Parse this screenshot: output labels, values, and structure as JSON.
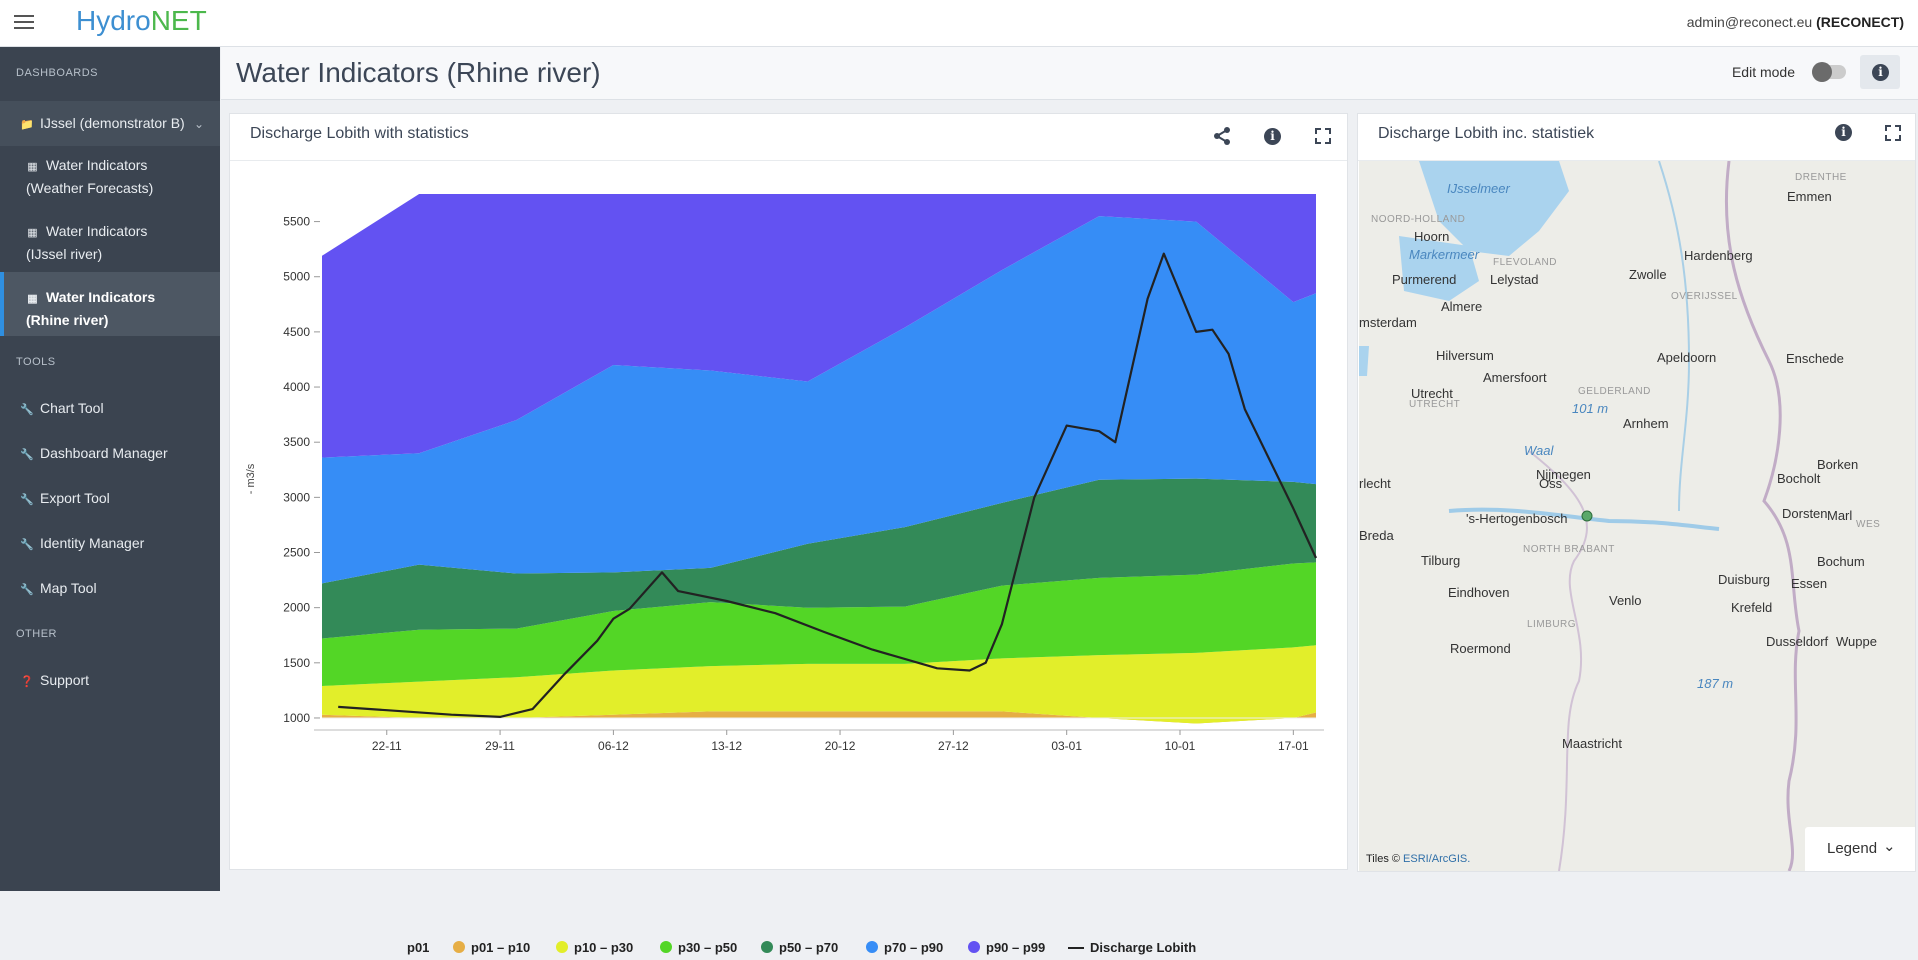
{
  "app": {
    "logo_hydro": "Hydro",
    "logo_net": "NET",
    "user_email": "admin@reconect.eu",
    "user_org": "(RECONECT)"
  },
  "sidebar": {
    "sections": {
      "dashboards": "DASHBOARDS",
      "tools": "TOOLS",
      "other": "OTHER"
    },
    "group": {
      "label": "IJssel (demonstrator B)",
      "icon": "folder-icon"
    },
    "dashboards": [
      {
        "label": "Water Indicators (Weather Forecasts)",
        "icon": "dashboard-icon"
      },
      {
        "label": "Water Indicators (IJssel river)",
        "icon": "dashboard-icon"
      },
      {
        "label": "Water Indicators (Rhine river)",
        "icon": "dashboard-icon",
        "active": true
      }
    ],
    "tools": [
      {
        "label": "Chart Tool",
        "icon": "wrench-icon"
      },
      {
        "label": "Dashboard Manager",
        "icon": "wrench-icon"
      },
      {
        "label": "Export Tool",
        "icon": "wrench-icon"
      },
      {
        "label": "Identity Manager",
        "icon": "wrench-icon"
      },
      {
        "label": "Map Tool",
        "icon": "wrench-icon"
      }
    ],
    "other": [
      {
        "label": "Support",
        "icon": "question-circle-icon"
      }
    ]
  },
  "header": {
    "title": "Water Indicators (Rhine river)",
    "edit_mode_label": "Edit mode",
    "edit_mode_on": false
  },
  "chart_panel": {
    "title": "Discharge Lobith with statistics"
  },
  "map_panel": {
    "title": "Discharge Lobith inc. statistiek",
    "legend_label": "Legend",
    "attribution_prefix": "Tiles ©",
    "attribution_link": "ESRI/ArcGIS.",
    "places": [
      "IJsselmeer",
      "NOORD-HOLLAND",
      "Hoorn",
      "Markermeer",
      "FLEVOLAND",
      "DRENTHE",
      "Emmen",
      "Hardenberg",
      "Purmerend",
      "Lelystad",
      "Zwolle",
      "OVERIJSSEL",
      "msterdam",
      "Almere",
      "Hilversum",
      "Apeldoorn",
      "Enschede",
      "Amersfoort",
      "GELDERLAND",
      "Utrecht",
      "UTRECHT",
      "101 m",
      "Arnhem",
      "Waal",
      "Nijmegen",
      "Borken",
      "Bocholt",
      "rlecht",
      "Oss",
      "'s-Hertogenbosch",
      "Dorsten",
      "Marl",
      "WES",
      "Breda",
      "NORTH BRABANT",
      "Tilburg",
      "Bochum",
      "Duisburg",
      "Essen",
      "Eindhoven",
      "Venlo",
      "Krefeld",
      "LIMBURG",
      "Roermond",
      "Dusseldorf",
      "Wuppe",
      "187 m",
      "Maastricht"
    ]
  },
  "chart_data": {
    "type": "area",
    "title": "",
    "xlabel": "",
    "ylabel": "- m3/s",
    "ylim": [
      900,
      5750
    ],
    "yticks": [
      1000,
      1500,
      2000,
      2500,
      3000,
      3500,
      4000,
      4500,
      5000,
      5500
    ],
    "xticks": [
      {
        "label": "22-11",
        "day": 6
      },
      {
        "label": "29-11",
        "day": 13
      },
      {
        "label": "06-12",
        "day": 20
      },
      {
        "label": "13-12",
        "day": 27
      },
      {
        "label": "20-12",
        "day": 34
      },
      {
        "label": "27-12",
        "day": 41
      },
      {
        "label": "03-01",
        "day": 48
      },
      {
        "label": "10-01",
        "day": 55
      },
      {
        "label": "17-01",
        "day": 62
      }
    ],
    "x_days": [
      2,
      8,
      14,
      20,
      26,
      32,
      38,
      44,
      50,
      56,
      62,
      63.4
    ],
    "band_bounds": {
      "p01": [
        1000,
        1000,
        1000,
        1000,
        1000,
        1000,
        1000,
        1000,
        1000,
        1000,
        1000,
        1000
      ],
      "p10": [
        1030,
        1000,
        1000,
        1030,
        1060,
        1060,
        1060,
        1060,
        1000,
        950,
        1000,
        1050
      ],
      "p30": [
        1290,
        1330,
        1370,
        1430,
        1470,
        1490,
        1490,
        1540,
        1570,
        1590,
        1640,
        1660
      ],
      "p50": [
        1720,
        1800,
        1810,
        1970,
        2050,
        2000,
        2010,
        2200,
        2270,
        2300,
        2400,
        2410
      ],
      "p70": [
        2220,
        2390,
        2310,
        2320,
        2360,
        2580,
        2730,
        2950,
        3160,
        3170,
        3140,
        3120
      ],
      "p90": [
        3360,
        3400,
        3700,
        4200,
        4150,
        4050,
        4540,
        5060,
        5550,
        5500,
        4770,
        4850
      ],
      "p99": [
        5190,
        5750,
        5750,
        5750,
        5750,
        5750,
        5750,
        5750,
        5750,
        5750,
        5750,
        5750
      ]
    },
    "colors": {
      "p01": "#000000",
      "p01_p10": "#e6ae45",
      "p10_p30": "#e2ee2a",
      "p30_p50": "#53d626",
      "p50_p70": "#338a58",
      "p70_p90": "#368df6",
      "p90_p99": "#6352f2",
      "discharge": "#222222"
    },
    "series": [
      {
        "name": "p01",
        "kind": "line"
      },
      {
        "name": "p01 – p10",
        "kind": "band"
      },
      {
        "name": "p10 – p30",
        "kind": "band"
      },
      {
        "name": "p30 – p50",
        "kind": "band"
      },
      {
        "name": "p50 – p70",
        "kind": "band"
      },
      {
        "name": "p70 – p90",
        "kind": "band"
      },
      {
        "name": "p90 – p99",
        "kind": "band"
      },
      {
        "name": "Discharge Lobith",
        "kind": "line",
        "x": [
          3,
          6,
          10,
          13,
          15,
          17,
          19,
          20,
          21,
          23,
          24,
          27,
          30,
          33,
          36,
          40,
          42,
          43,
          44,
          46,
          48,
          50,
          51,
          53,
          54,
          56,
          57,
          58,
          59,
          62,
          63.4
        ],
        "y": [
          1100,
          1070,
          1030,
          1010,
          1080,
          1400,
          1700,
          1900,
          1990,
          2320,
          2150,
          2060,
          1950,
          1780,
          1620,
          1450,
          1430,
          1500,
          1850,
          3000,
          3650,
          3600,
          3500,
          4800,
          5210,
          4500,
          4520,
          4300,
          3800,
          2900,
          2450
        ]
      }
    ],
    "legend_position": "bottom",
    "grid": false
  }
}
